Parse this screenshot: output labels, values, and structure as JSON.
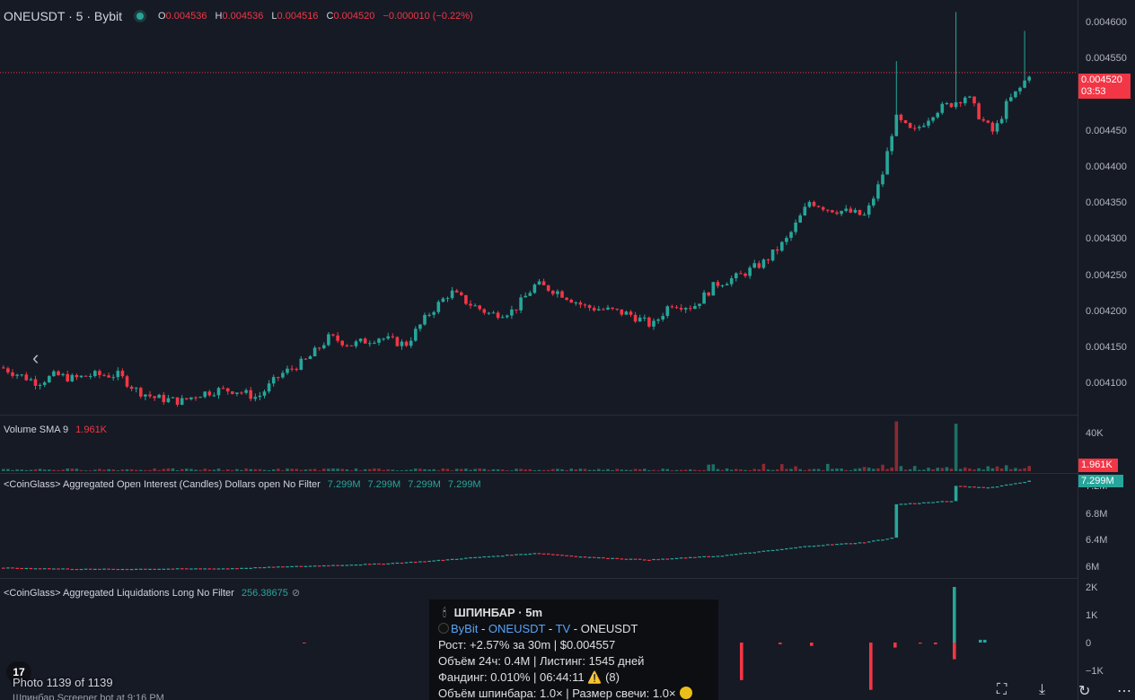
{
  "header": {
    "symbol": "ONEUSDT · 5 · Bybit",
    "ohlc": {
      "o_label": "O",
      "o": "0.004536",
      "h_label": "H",
      "h": "0.004536",
      "l_label": "L",
      "l": "0.004516",
      "c_label": "C",
      "c": "0.004520",
      "change": "−0.000010 (−0.22%)"
    }
  },
  "price_axis": {
    "ticks": [
      "0.004600",
      "0.004550",
      "0.004450",
      "0.004400",
      "0.004350",
      "0.004300",
      "0.004250",
      "0.004200",
      "0.004150",
      "0.004100"
    ],
    "last_price": "0.004520",
    "countdown": "03:53"
  },
  "volume_pane": {
    "label": "Volume SMA 9",
    "value": "1.961K",
    "ticks": [
      "40K"
    ],
    "tag": "1.961K"
  },
  "oi_pane": {
    "label": "<CoinGlass> Aggregated Open Interest (Candles) Dollars open No Filter",
    "values": [
      "7.299M",
      "7.299M",
      "7.299M",
      "7.299M"
    ],
    "ticks": [
      "7.2M",
      "6.8M",
      "6.4M",
      "6M"
    ],
    "tag": "7.299M"
  },
  "liq_pane": {
    "label": "<CoinGlass> Aggregated Liquidations Long No Filter",
    "value": "256.38675",
    "ticks": [
      "2K",
      "1K",
      "0",
      "−1K"
    ]
  },
  "overlay": {
    "photo_counter": "Photo 1139 of 1139",
    "photo_cut_text": "Шпинбар Screener bot at 9:16 PM",
    "tv_logo": "17"
  },
  "info_box": {
    "title": "ШПИНБАР · 5m",
    "exchange": "ByBit",
    "sep1": " - ",
    "pair": "ONEUSDT",
    "sep2": " - ",
    "tv": "TV",
    "sep3": " - ",
    "pair_plain": "ONEUSDT",
    "line_growth": "Рост: +2.57% за 30m | $0.004557",
    "line_volume": "Объём 24ч: 0.4M | Листинг: 1545 дней",
    "line_funding": "Фандинг: 0.010% | 06:44:11",
    "funding_count": "(8)",
    "line_spin": "Объём шпинбара: 1.0× | Размер свечи: 1.0×"
  },
  "colors": {
    "up": "#26a69a",
    "down": "#f23645",
    "background": "#161a25",
    "grid": "#2a2e39"
  },
  "icons": {
    "prev": "chevron-left-icon",
    "screenshot": "screenshot-icon",
    "download": "download-icon",
    "rotate": "rotate-icon",
    "more": "more-icon"
  },
  "chart_data": {
    "type": "candlestick",
    "interval": "5",
    "y_range": [
      0.00407,
      0.00461
    ],
    "last": 0.00452,
    "close_path": [
      [
        0,
        0.00413
      ],
      [
        20,
        0.00412
      ],
      [
        40,
        0.00411
      ],
      [
        60,
        0.00412
      ],
      [
        80,
        0.004115
      ],
      [
        100,
        0.00412
      ],
      [
        130,
        0.00412
      ],
      [
        150,
        0.0041
      ],
      [
        170,
        0.00409
      ],
      [
        200,
        0.004085
      ],
      [
        220,
        0.004095
      ],
      [
        240,
        0.0041
      ],
      [
        260,
        0.0041
      ],
      [
        285,
        0.00409
      ],
      [
        310,
        0.00412
      ],
      [
        340,
        0.00414
      ],
      [
        365,
        0.00417
      ],
      [
        390,
        0.00416
      ],
      [
        420,
        0.00417
      ],
      [
        450,
        0.00416
      ],
      [
        475,
        0.0042
      ],
      [
        500,
        0.00423
      ],
      [
        520,
        0.004215
      ],
      [
        545,
        0.0042
      ],
      [
        570,
        0.004205
      ],
      [
        595,
        0.00424
      ],
      [
        620,
        0.00423
      ],
      [
        650,
        0.00421
      ],
      [
        680,
        0.004205
      ],
      [
        700,
        0.0042
      ],
      [
        725,
        0.004185
      ],
      [
        745,
        0.004215
      ],
      [
        770,
        0.00421
      ],
      [
        795,
        0.00424
      ],
      [
        820,
        0.00425
      ],
      [
        850,
        0.00427
      ],
      [
        875,
        0.0043
      ],
      [
        900,
        0.00435
      ],
      [
        920,
        0.00434
      ],
      [
        945,
        0.004335
      ],
      [
        962,
        0.00433
      ],
      [
        980,
        0.00438
      ],
      [
        995,
        0.00446
      ],
      [
        1015,
        0.00444
      ],
      [
        1040,
        0.00447
      ],
      [
        1060,
        0.00448
      ],
      [
        1075,
        0.00449
      ],
      [
        1090,
        0.00446
      ],
      [
        1105,
        0.00444
      ],
      [
        1120,
        0.00448
      ],
      [
        1135,
        0.0045
      ],
      [
        1145,
        0.00452
      ]
    ],
    "spikes": [
      {
        "x": 995,
        "high": 0.004535
      },
      {
        "x": 1062,
        "high": 0.0046
      },
      {
        "x": 1138,
        "high": 0.004575
      }
    ],
    "volume_spikes": [
      {
        "x": 995,
        "value": 43000
      },
      {
        "x": 1062,
        "value": 41000
      }
    ],
    "open_interest_range": [
      5.9,
      7.35
    ],
    "open_interest_path": [
      [
        0,
        6.0
      ],
      [
        100,
        5.98
      ],
      [
        250,
        5.99
      ],
      [
        420,
        6.06
      ],
      [
        475,
        6.1
      ],
      [
        520,
        6.15
      ],
      [
        595,
        6.22
      ],
      [
        650,
        6.16
      ],
      [
        720,
        6.12
      ],
      [
        800,
        6.18
      ],
      [
        870,
        6.28
      ],
      [
        900,
        6.33
      ],
      [
        960,
        6.38
      ],
      [
        993,
        6.45
      ],
      [
        996,
        6.95
      ],
      [
        1058,
        7.0
      ],
      [
        1062,
        7.22
      ],
      [
        1100,
        7.2
      ],
      [
        1145,
        7.3
      ]
    ],
    "liquidations_bars": [
      {
        "x": 337,
        "value": -30
      },
      {
        "x": 824,
        "value": -1350
      },
      {
        "x": 867,
        "value": -60
      },
      {
        "x": 902,
        "value": -120
      },
      {
        "x": 968,
        "value": -1700
      },
      {
        "x": 995,
        "value": -180
      },
      {
        "x": 1023,
        "value": -40
      },
      {
        "x": 1040,
        "value": -60
      },
      {
        "x": 1061,
        "value": -600
      },
      {
        "x": 1061,
        "value": 2000
      },
      {
        "x": 1090,
        "value": 100
      },
      {
        "x": 1095,
        "value": 100
      }
    ]
  }
}
